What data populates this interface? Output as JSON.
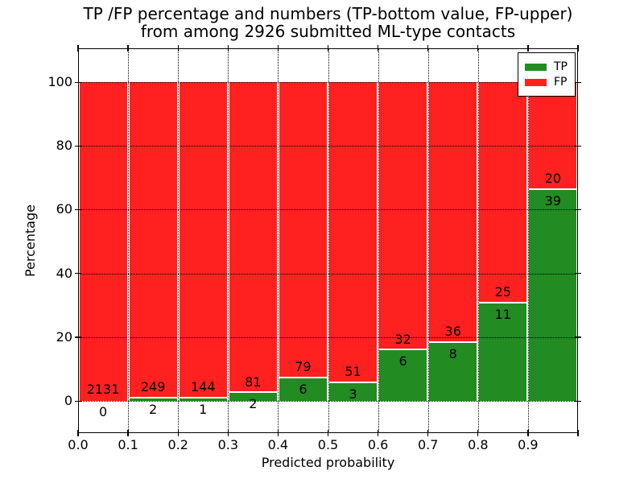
{
  "figure": {
    "title_line1": "TP /FP percentage and numbers (TP-bottom value, FP-upper)",
    "title_line2": "from among 2926 submitted ML-type contacts"
  },
  "chart_data": {
    "type": "bar",
    "stacked": true,
    "title": "TP /FP percentage and numbers (TP-bottom value, FP-upper)\nfrom among 2926 submitted ML-type contacts",
    "xlabel": "Predicted probability",
    "ylabel": "Percentage",
    "total_contacts": 2926,
    "bins": [
      "0.0-0.1",
      "0.1-0.2",
      "0.2-0.3",
      "0.3-0.4",
      "0.4-0.5",
      "0.5-0.6",
      "0.6-0.7",
      "0.7-0.8",
      "0.8-0.9",
      "0.9-1.0"
    ],
    "x_tick_labels": [
      "0.0",
      "0.1",
      "0.2",
      "0.3",
      "0.4",
      "0.5",
      "0.6",
      "0.7",
      "0.8",
      "0.9"
    ],
    "y_ticks": [
      0,
      20,
      40,
      60,
      80,
      100
    ],
    "y_tick_labels": [
      "0",
      "20",
      "40",
      "60",
      "80",
      "100"
    ],
    "xlim": [
      0.0,
      1.0
    ],
    "ylim": [
      -10.1,
      110.6
    ],
    "grid": true,
    "grid_style": "dotted",
    "legend_position": "upper right",
    "series": [
      {
        "name": "TP",
        "color": "#228B22",
        "counts": [
          0,
          2,
          1,
          2,
          6,
          3,
          6,
          8,
          11,
          39
        ]
      },
      {
        "name": "FP",
        "color": "#FF2020",
        "counts": [
          2131,
          249,
          144,
          81,
          79,
          51,
          32,
          36,
          25,
          20
        ]
      }
    ],
    "tp_percent_of_bin": [
      0.0,
      0.8,
      0.69,
      2.41,
      7.06,
      5.56,
      15.79,
      18.18,
      30.56,
      66.1
    ],
    "colors": {
      "tp": "#228B22",
      "fp": "#FF2020",
      "axis": "#000000",
      "background": "#ffffff"
    }
  }
}
